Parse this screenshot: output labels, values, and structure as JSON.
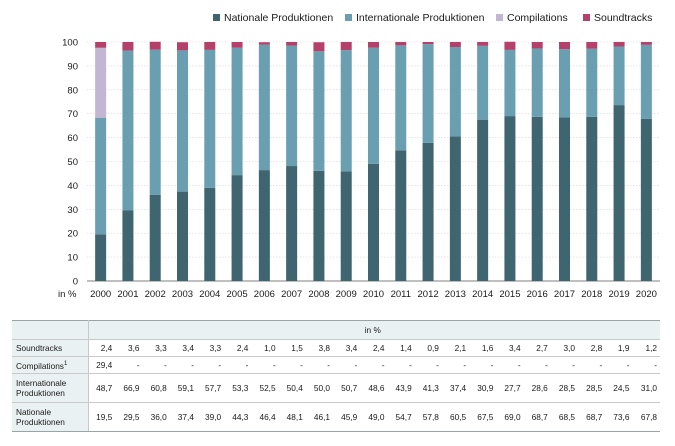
{
  "chart_data": {
    "type": "bar",
    "stacked": true,
    "years": [
      "2000",
      "2001",
      "2002",
      "2003",
      "2004",
      "2005",
      "2006",
      "2007",
      "2008",
      "2009",
      "2010",
      "2011",
      "2012",
      "2013",
      "2014",
      "2015",
      "2016",
      "2017",
      "2018",
      "2019",
      "2020"
    ],
    "series": [
      {
        "name": "Nationale Produktionen",
        "color": "#3e6570",
        "values": [
          19.5,
          29.5,
          36.0,
          37.4,
          39.0,
          44.3,
          46.4,
          48.1,
          46.1,
          45.9,
          49.0,
          54.7,
          57.8,
          60.5,
          67.5,
          69.0,
          68.7,
          68.5,
          68.7,
          73.6,
          67.8
        ]
      },
      {
        "name": "Internationale Produktionen",
        "color": "#6a9fb2",
        "values": [
          48.7,
          66.9,
          60.8,
          59.1,
          57.7,
          53.3,
          52.5,
          50.4,
          50.0,
          50.7,
          48.6,
          43.9,
          41.3,
          37.4,
          30.9,
          27.7,
          28.6,
          28.5,
          28.5,
          24.5,
          31.0
        ]
      },
      {
        "name": "Compilations",
        "color": "#c2b6d2",
        "values": [
          29.4,
          0,
          0,
          0,
          0,
          0,
          0,
          0,
          0,
          0,
          0,
          0,
          0,
          0,
          0,
          0,
          0,
          0,
          0,
          0,
          0
        ]
      },
      {
        "name": "Soundtracks",
        "color": "#b5416a",
        "values": [
          2.4,
          3.6,
          3.3,
          3.4,
          3.3,
          2.4,
          1.0,
          1.5,
          3.8,
          3.4,
          2.4,
          1.4,
          0.9,
          2.1,
          1.6,
          3.4,
          2.7,
          3.0,
          2.8,
          1.9,
          1.2
        ]
      }
    ],
    "yticks": [
      "0",
      "10",
      "20",
      "30",
      "40",
      "50",
      "60",
      "70",
      "80",
      "90",
      "100"
    ],
    "ylim": [
      0,
      100
    ],
    "ylabel": "in %",
    "legend_position": "top",
    "grid": true
  },
  "table": {
    "header_label": "in %",
    "rows": [
      {
        "label": "Soundtracks",
        "values": [
          "2,4",
          "3,6",
          "3,3",
          "3,4",
          "3,3",
          "2,4",
          "1,0",
          "1,5",
          "3,8",
          "3,4",
          "2,4",
          "1,4",
          "0,9",
          "2,1",
          "1,6",
          "3,4",
          "2,7",
          "3,0",
          "2,8",
          "1,9",
          "1,2"
        ]
      },
      {
        "label": "Compilations",
        "label_sup": "1",
        "values": [
          "29,4",
          "-",
          "-",
          "-",
          "-",
          "-",
          "-",
          "-",
          "-",
          "-",
          "-",
          "-",
          "-",
          "-",
          "-",
          "-",
          "-",
          "-",
          "-",
          "-",
          "-"
        ]
      },
      {
        "label_line1": "Internationale",
        "label_line2": "Produktionen",
        "values": [
          "48,7",
          "66,9",
          "60,8",
          "59,1",
          "57,7",
          "53,3",
          "52,5",
          "50,4",
          "50,0",
          "50,7",
          "48,6",
          "43,9",
          "41,3",
          "37,4",
          "30,9",
          "27,7",
          "28,6",
          "28,5",
          "28,5",
          "24,5",
          "31,0"
        ]
      },
      {
        "label_line1": "Nationale",
        "label_line2": "Produktionen",
        "values": [
          "19,5",
          "29,5",
          "36,0",
          "37,4",
          "39,0",
          "44,3",
          "46,4",
          "48,1",
          "46,1",
          "45,9",
          "49,0",
          "54,7",
          "57,8",
          "60,5",
          "67,5",
          "69,0",
          "68,7",
          "68,5",
          "68,7",
          "73,6",
          "67,8"
        ]
      }
    ]
  }
}
